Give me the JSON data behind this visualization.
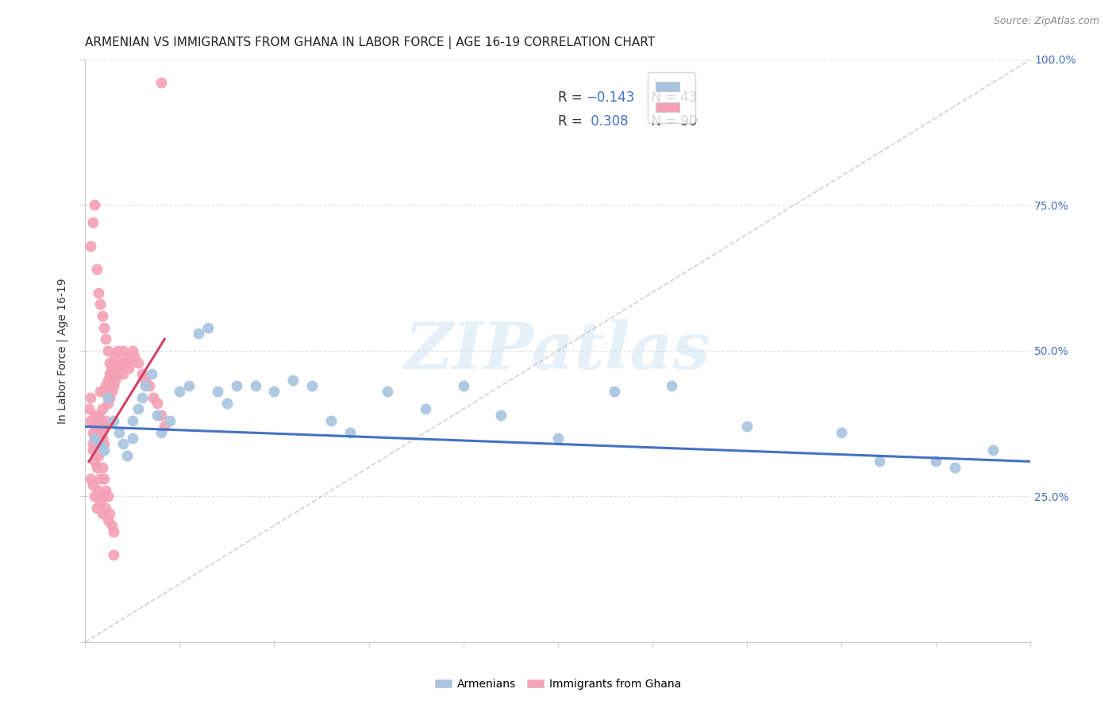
{
  "title": "ARMENIAN VS IMMIGRANTS FROM GHANA IN LABOR FORCE | AGE 16-19 CORRELATION CHART",
  "source": "Source: ZipAtlas.com",
  "ylabel": "In Labor Force | Age 16-19",
  "xlim": [
    0.0,
    0.5
  ],
  "ylim": [
    0.0,
    1.0
  ],
  "blue_color": "#a8c4e0",
  "pink_color": "#f4a0b5",
  "blue_line_color": "#4472C4",
  "pink_line_color": "#d04060",
  "legend_label_armenians": "Armenians",
  "legend_label_ghana": "Immigrants from Ghana",
  "watermark_text": "ZIPatlas",
  "grid_color": "#e0e0e0",
  "background_color": "#ffffff",
  "title_fontsize": 11,
  "axis_label_fontsize": 10,
  "tick_fontsize": 10,
  "source_fontsize": 9,
  "blue_x": [
    0.005,
    0.008,
    0.01,
    0.012,
    0.015,
    0.018,
    0.02,
    0.022,
    0.025,
    0.025,
    0.028,
    0.03,
    0.032,
    0.035,
    0.038,
    0.04,
    0.045,
    0.05,
    0.055,
    0.06,
    0.065,
    0.07,
    0.075,
    0.08,
    0.09,
    0.1,
    0.11,
    0.12,
    0.13,
    0.14,
    0.16,
    0.18,
    0.2,
    0.22,
    0.25,
    0.28,
    0.31,
    0.35,
    0.4,
    0.42,
    0.45,
    0.46,
    0.48
  ],
  "blue_y": [
    0.35,
    0.34,
    0.33,
    0.42,
    0.38,
    0.36,
    0.34,
    0.32,
    0.35,
    0.38,
    0.4,
    0.42,
    0.44,
    0.46,
    0.39,
    0.36,
    0.38,
    0.43,
    0.44,
    0.53,
    0.54,
    0.43,
    0.41,
    0.44,
    0.44,
    0.43,
    0.45,
    0.44,
    0.38,
    0.36,
    0.43,
    0.4,
    0.44,
    0.39,
    0.35,
    0.43,
    0.44,
    0.37,
    0.36,
    0.31,
    0.31,
    0.3,
    0.33
  ],
  "pink_x": [
    0.002,
    0.003,
    0.003,
    0.004,
    0.004,
    0.005,
    0.005,
    0.005,
    0.006,
    0.006,
    0.006,
    0.007,
    0.007,
    0.007,
    0.008,
    0.008,
    0.008,
    0.009,
    0.009,
    0.01,
    0.01,
    0.01,
    0.011,
    0.011,
    0.012,
    0.012,
    0.013,
    0.013,
    0.014,
    0.014,
    0.015,
    0.015,
    0.016,
    0.016,
    0.017,
    0.017,
    0.018,
    0.019,
    0.02,
    0.02,
    0.021,
    0.022,
    0.023,
    0.024,
    0.025,
    0.026,
    0.028,
    0.03,
    0.032,
    0.034,
    0.036,
    0.038,
    0.04,
    0.042,
    0.004,
    0.005,
    0.006,
    0.007,
    0.008,
    0.009,
    0.01,
    0.011,
    0.012,
    0.003,
    0.004,
    0.005,
    0.006,
    0.007,
    0.008,
    0.009,
    0.01,
    0.011,
    0.012,
    0.013,
    0.014,
    0.015,
    0.003,
    0.004,
    0.005,
    0.006,
    0.007,
    0.008,
    0.009,
    0.01,
    0.011,
    0.012,
    0.013,
    0.014,
    0.015,
    0.04
  ],
  "pink_y": [
    0.4,
    0.38,
    0.42,
    0.36,
    0.34,
    0.35,
    0.37,
    0.39,
    0.34,
    0.36,
    0.38,
    0.35,
    0.37,
    0.39,
    0.34,
    0.36,
    0.43,
    0.35,
    0.4,
    0.34,
    0.37,
    0.43,
    0.38,
    0.44,
    0.41,
    0.45,
    0.42,
    0.46,
    0.43,
    0.47,
    0.44,
    0.48,
    0.45,
    0.49,
    0.46,
    0.5,
    0.47,
    0.48,
    0.46,
    0.5,
    0.48,
    0.49,
    0.47,
    0.48,
    0.5,
    0.49,
    0.48,
    0.46,
    0.45,
    0.44,
    0.42,
    0.41,
    0.39,
    0.37,
    0.33,
    0.31,
    0.3,
    0.32,
    0.28,
    0.3,
    0.28,
    0.26,
    0.25,
    0.28,
    0.27,
    0.25,
    0.23,
    0.26,
    0.24,
    0.22,
    0.25,
    0.23,
    0.21,
    0.22,
    0.2,
    0.19,
    0.68,
    0.72,
    0.75,
    0.64,
    0.6,
    0.58,
    0.56,
    0.54,
    0.52,
    0.5,
    0.48,
    0.46,
    0.15,
    0.96
  ],
  "blue_line_x0": 0.0,
  "blue_line_x1": 0.5,
  "blue_line_y0": 0.37,
  "blue_line_y1": 0.31,
  "pink_line_x0": 0.002,
  "pink_line_x1": 0.042,
  "pink_line_y0": 0.31,
  "pink_line_y1": 0.52
}
